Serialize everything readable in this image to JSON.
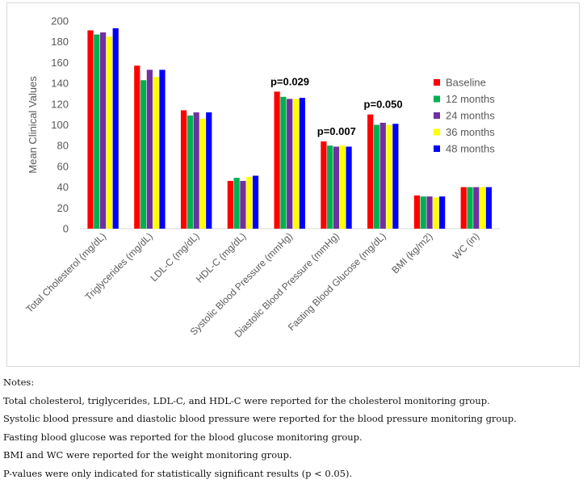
{
  "chart_data": {
    "type": "bar",
    "title": "",
    "xlabel": "",
    "ylabel": "Mean Clinical Values",
    "ylim": [
      0,
      200
    ],
    "yticks": [
      0,
      20,
      40,
      60,
      80,
      100,
      120,
      140,
      160,
      180,
      200
    ],
    "grid": false,
    "legend_position": "right",
    "categories": [
      "Total Cholesterol (mg/dL)",
      "Triglycerides (mg/dL)",
      "LDL-C (mg/dL)",
      "HDL-C (mg/dL)",
      "Systolic Blood Pressure (mmHg)",
      "Diastolic Blood Pressure (mmHg)",
      "Fasting Blood Glucose (mg/dL)",
      "BMI (kg/m2)",
      "WC (in)"
    ],
    "series": [
      {
        "name": "Baseline",
        "color": "#ff0000",
        "values": [
          191,
          157,
          114,
          46,
          132,
          84,
          110,
          32,
          40
        ]
      },
      {
        "name": "12 months",
        "color": "#00b050",
        "values": [
          187,
          143,
          109,
          49,
          127,
          80,
          100,
          31,
          40
        ]
      },
      {
        "name": "24 months",
        "color": "#7030a0",
        "values": [
          189,
          153,
          112,
          46,
          125,
          79,
          102,
          31,
          40
        ]
      },
      {
        "name": "36 months",
        "color": "#ffff00",
        "values": [
          185,
          146,
          106,
          50,
          125,
          80,
          100,
          30,
          40
        ]
      },
      {
        "name": "48 months",
        "color": "#0000ff",
        "values": [
          193,
          153,
          112,
          51,
          126,
          79,
          101,
          31,
          40
        ]
      }
    ],
    "annotations": [
      {
        "category_index": 4,
        "text": "p=0.029"
      },
      {
        "category_index": 5,
        "text": "p=0.007"
      },
      {
        "category_index": 6,
        "text": "p=0.050"
      }
    ]
  },
  "notes": {
    "heading": "Notes:",
    "lines": [
      "Total cholesterol, triglycerides, LDL-C, and HDL-C were reported for the cholesterol monitoring group.",
      "Systolic blood pressure and diastolic blood pressure were reported for the blood pressure monitoring group.",
      "Fasting blood glucose was reported for the blood glucose monitoring group.",
      "BMI and WC were reported for the weight monitoring group.",
      "P-values were only indicated for statistically significant results (p < 0.05)."
    ]
  }
}
